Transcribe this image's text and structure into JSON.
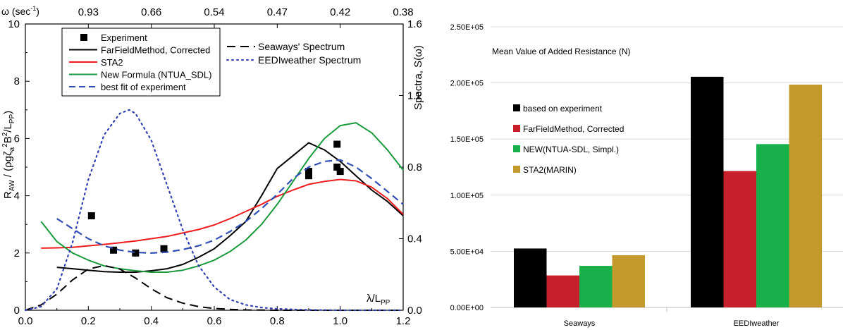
{
  "chart_data": [
    {
      "type": "line",
      "top_axis": {
        "label": "ω (sec",
        "label_sup": "-1",
        "label_close": ")",
        "ticks": [
          "0.93",
          "0.66",
          "0.54",
          "0.47",
          "0.42",
          "0.38"
        ],
        "tick_x": [
          0.2,
          0.4,
          0.6,
          0.8,
          1.0,
          1.2
        ]
      },
      "xlabel": "λ/L",
      "xlabel_sub": "PP",
      "ylabel_left": {
        "main": "R",
        "sub1": "AW",
        "rest": " / (ρgζ",
        "sub2": "a",
        "sup": "2",
        "tail": "B",
        "sup2": "2",
        "tail2": "/L",
        "sub3": "PP",
        "close": ")"
      },
      "ylabel_right": "Spectra, S(ω)",
      "xlim": [
        0.0,
        1.2
      ],
      "ylim_left": [
        0,
        10
      ],
      "ylim_right": [
        0.0,
        1.6
      ],
      "x_ticks": [
        "0.0",
        "0.2",
        "0.4",
        "0.6",
        "0.8",
        "1.0",
        "1.2"
      ],
      "y_ticks_left": [
        "0",
        "2",
        "4",
        "6",
        "8",
        "10"
      ],
      "y_ticks_right": [
        "0.0",
        "0.4",
        "0.8",
        "1.2",
        "1.6"
      ],
      "legend_inner": [
        "Experiment",
        "FarFieldMethod, Corrected",
        "STA2",
        "New Formula (NTUA_SDL)",
        "best fit of experiment"
      ],
      "legend_outer": [
        "Seaways' Spectrum",
        "EEDIweather Spectrum"
      ],
      "colors": {
        "experiment": "#000000",
        "farfield": "#000000",
        "sta2": "#ee1c1c",
        "ntua": "#1a9a3c",
        "bestfit": "#2f4fb5",
        "seaways": "#000000",
        "eedi": "#2f3fb0"
      },
      "series": [
        {
          "name": "Experiment",
          "kind": "points",
          "x": [
            0.21,
            0.28,
            0.35,
            0.44,
            0.9,
            0.9,
            0.99,
            0.99,
            1.0
          ],
          "y": [
            3.3,
            2.1,
            2.0,
            2.15,
            4.7,
            4.85,
            5.8,
            5.0,
            4.85
          ]
        },
        {
          "name": "FarFieldMethod, Corrected",
          "kind": "line",
          "x": [
            0.1,
            0.15,
            0.2,
            0.25,
            0.3,
            0.35,
            0.4,
            0.45,
            0.5,
            0.55,
            0.6,
            0.65,
            0.7,
            0.75,
            0.8,
            0.85,
            0.9,
            0.95,
            1.0,
            1.05,
            1.1,
            1.15,
            1.2
          ],
          "y": [
            1.5,
            1.45,
            1.4,
            1.35,
            1.33,
            1.33,
            1.38,
            1.45,
            1.6,
            1.85,
            2.15,
            2.6,
            3.1,
            4.0,
            4.95,
            5.4,
            5.85,
            5.6,
            5.2,
            4.7,
            4.2,
            3.8,
            3.3
          ]
        },
        {
          "name": "STA2",
          "kind": "line",
          "x": [
            0.05,
            0.1,
            0.15,
            0.2,
            0.25,
            0.3,
            0.35,
            0.4,
            0.45,
            0.5,
            0.55,
            0.6,
            0.65,
            0.7,
            0.75,
            0.8,
            0.85,
            0.9,
            0.95,
            1.0,
            1.05,
            1.1,
            1.15,
            1.2
          ],
          "y": [
            2.17,
            2.18,
            2.2,
            2.25,
            2.3,
            2.36,
            2.42,
            2.5,
            2.58,
            2.7,
            2.82,
            2.98,
            3.2,
            3.45,
            3.7,
            3.98,
            4.2,
            4.4,
            4.5,
            4.57,
            4.52,
            4.3,
            3.9,
            3.35
          ]
        },
        {
          "name": "New Formula (NTUA_SDL)",
          "kind": "line",
          "x": [
            0.05,
            0.1,
            0.15,
            0.2,
            0.25,
            0.3,
            0.35,
            0.4,
            0.45,
            0.5,
            0.55,
            0.6,
            0.65,
            0.7,
            0.75,
            0.8,
            0.85,
            0.9,
            0.95,
            1.0,
            1.05,
            1.1,
            1.15,
            1.2
          ],
          "y": [
            3.1,
            2.4,
            2.0,
            1.75,
            1.55,
            1.45,
            1.38,
            1.33,
            1.33,
            1.4,
            1.55,
            1.75,
            2.05,
            2.45,
            3.0,
            3.7,
            4.5,
            5.3,
            6.0,
            6.45,
            6.55,
            6.2,
            5.6,
            4.9
          ]
        },
        {
          "name": "best fit of experiment",
          "kind": "dashline",
          "x": [
            0.1,
            0.15,
            0.2,
            0.25,
            0.3,
            0.35,
            0.4,
            0.45,
            0.5,
            0.55,
            0.6,
            0.65,
            0.7,
            0.75,
            0.8,
            0.85,
            0.9,
            0.95,
            1.0,
            1.05,
            1.1,
            1.15,
            1.2
          ],
          "y": [
            3.2,
            2.85,
            2.5,
            2.25,
            2.1,
            2.02,
            2.0,
            2.03,
            2.12,
            2.25,
            2.45,
            2.75,
            3.1,
            3.55,
            4.05,
            4.6,
            5.0,
            5.2,
            5.25,
            5.0,
            4.6,
            4.15,
            3.7
          ]
        },
        {
          "name": "Seaways' Spectrum",
          "kind": "longdash",
          "x": [
            0.0,
            0.05,
            0.1,
            0.15,
            0.2,
            0.25,
            0.3,
            0.35,
            0.4,
            0.45,
            0.5,
            0.55,
            0.6,
            0.65,
            0.7,
            0.8,
            0.9,
            1.0,
            1.1,
            1.2
          ],
          "y": [
            0.0,
            0.03,
            0.09,
            0.17,
            0.23,
            0.25,
            0.23,
            0.18,
            0.12,
            0.07,
            0.04,
            0.02,
            0.01,
            0.005,
            0.002,
            0.0,
            0.0,
            0.0,
            0.0,
            0.0
          ]
        },
        {
          "name": "EEDIweather Spectrum",
          "kind": "dotted",
          "x": [
            0.0,
            0.05,
            0.1,
            0.15,
            0.2,
            0.25,
            0.3,
            0.33,
            0.35,
            0.4,
            0.45,
            0.5,
            0.55,
            0.6,
            0.65,
            0.7,
            0.75,
            0.8,
            0.9,
            1.0,
            1.1,
            1.2
          ],
          "y": [
            0.0,
            0.02,
            0.12,
            0.38,
            0.73,
            0.98,
            1.1,
            1.12,
            1.1,
            0.95,
            0.7,
            0.45,
            0.25,
            0.13,
            0.06,
            0.03,
            0.015,
            0.008,
            0.002,
            0.0,
            0.0,
            0.0
          ]
        }
      ]
    },
    {
      "type": "bar",
      "title": "Mean Value of Added Resistance (N)",
      "categories": [
        "Seaways",
        "EEDIweather"
      ],
      "ylim": [
        0,
        250000
      ],
      "y_ticks": [
        "0.00E+00",
        "5.00E+04",
        "1.00E+05",
        "1.50E+05",
        "2.00E+05",
        "2.50E+05"
      ],
      "series": [
        {
          "name": "based on experiment",
          "color": "#000000",
          "values": [
            52500,
            205500
          ]
        },
        {
          "name": "FarFieldMethod, Corrected",
          "color": "#c8202a",
          "values": [
            28500,
            121500
          ]
        },
        {
          "name": "NEW(NTUA-SDL, Simpl.)",
          "color": "#18b04b",
          "values": [
            37000,
            145500
          ]
        },
        {
          "name": "STA2(MARIN)",
          "color": "#c49a2e",
          "values": [
            46500,
            198500
          ]
        }
      ]
    }
  ]
}
